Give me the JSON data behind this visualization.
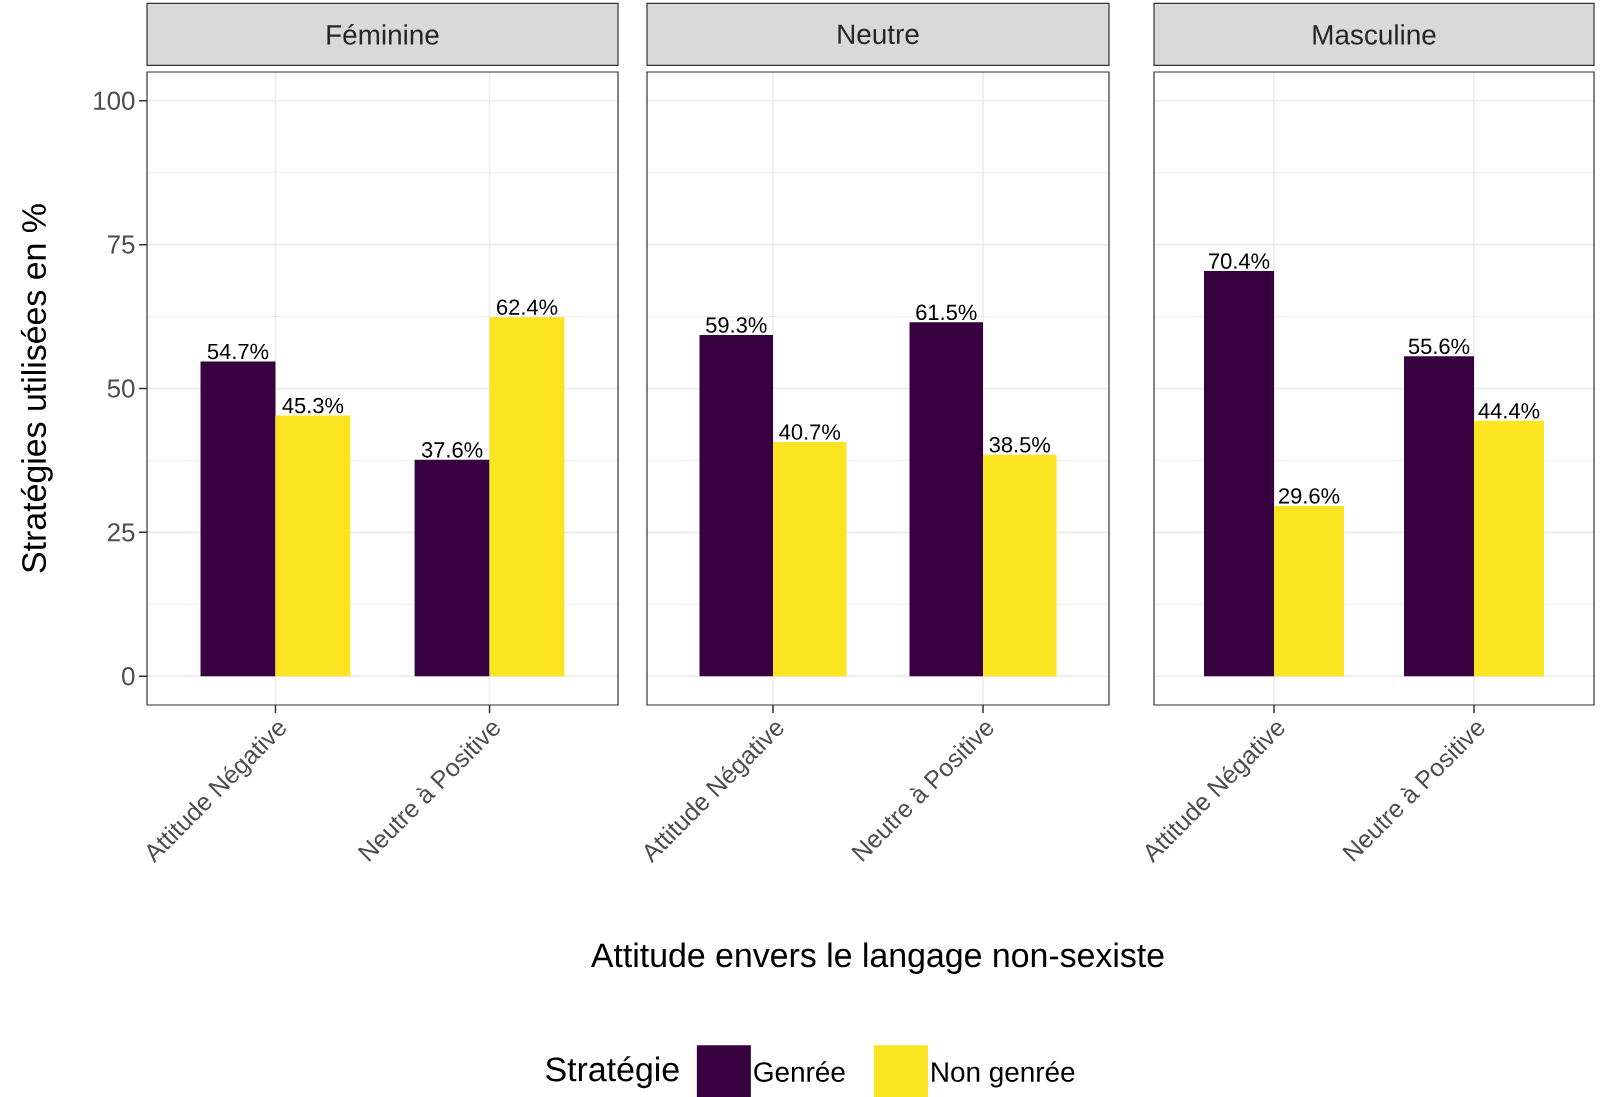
{
  "chart_data": [
    {
      "type": "bar",
      "title": "Féminine",
      "ylabel": "Stratégies utilisées en %",
      "categories": [
        "Attitude Négative",
        "Neutre à Positive"
      ],
      "series": [
        {
          "color": "#36013e",
          "values": [
            54.7,
            37.6
          ],
          "value_labels": [
            "54.7%",
            "37.6%"
          ]
        },
        {
          "color": "#fbe422",
          "values": [
            45.3,
            62.4
          ],
          "value_labels": [
            "45.3%",
            "62.4%"
          ]
        }
      ],
      "ylim": [
        -5,
        105
      ],
      "yticks": [
        0,
        25,
        50,
        75,
        100
      ],
      "grid": true
    },
    {
      "type": "bar",
      "title": "Neutre",
      "xlabel": "Attitude envers le langage non-sexiste",
      "legend_title": "Stratégie",
      "legend": "bottom",
      "categories": [
        "Attitude Négative",
        "Neutre à Positive"
      ],
      "series": [
        {
          "name": "Genrée",
          "color": "#36013e",
          "values": [
            59.3,
            61.5
          ],
          "value_labels": [
            "59.3%",
            "61.5%"
          ]
        },
        {
          "name": "Non genrée",
          "color": "#fbe422",
          "values": [
            40.7,
            38.5
          ],
          "value_labels": [
            "40.7%",
            "38.5%"
          ]
        }
      ],
      "ylim": [
        -5,
        105
      ],
      "yticks": [
        0,
        25,
        50,
        75,
        100
      ],
      "grid": true,
      "tick_labels": "x"
    },
    {
      "type": "bar",
      "title": "Masculine",
      "categories": [
        "Attitude Négative",
        "Neutre à Positive"
      ],
      "series": [
        {
          "color": "#36013e",
          "values": [
            70.4,
            55.6
          ],
          "value_labels": [
            "70.4%",
            "55.6%"
          ]
        },
        {
          "color": "#fbe422",
          "values": [
            29.6,
            44.4
          ],
          "value_labels": [
            "29.6%",
            "44.4%"
          ]
        }
      ],
      "ylim": [
        -5,
        105
      ],
      "yticks": [
        0,
        25,
        50,
        75,
        100
      ],
      "grid": true,
      "tick_labels": "x"
    }
  ]
}
